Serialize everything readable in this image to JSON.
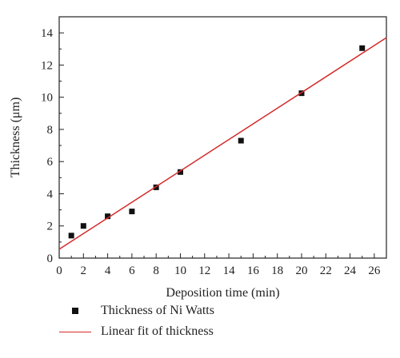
{
  "chart_data": {
    "type": "scatter",
    "xlabel": "Deposition time (min)",
    "ylabel": "Thickness (μm)",
    "xlim": [
      0,
      27
    ],
    "ylim": [
      0,
      15
    ],
    "x_ticks": [
      0,
      2,
      4,
      6,
      8,
      10,
      12,
      14,
      16,
      18,
      20,
      22,
      24,
      26
    ],
    "y_ticks": [
      0,
      2,
      4,
      6,
      8,
      10,
      12,
      14
    ],
    "series": [
      {
        "name": "Thickness of Ni Watts",
        "type": "scatter",
        "color": "#111111",
        "points": [
          {
            "x": 1,
            "y": 1.4
          },
          {
            "x": 2,
            "y": 2.0
          },
          {
            "x": 4,
            "y": 2.6
          },
          {
            "x": 6,
            "y": 2.9
          },
          {
            "x": 8,
            "y": 4.4
          },
          {
            "x": 10,
            "y": 5.35
          },
          {
            "x": 15,
            "y": 7.3
          },
          {
            "x": 20,
            "y": 10.25
          },
          {
            "x": 25,
            "y": 13.05
          }
        ]
      },
      {
        "name": "Linear fit of thickness",
        "type": "line",
        "color": "#d42a2a",
        "points": [
          {
            "x": 0,
            "y": 0.55
          },
          {
            "x": 27,
            "y": 13.7
          }
        ]
      }
    ],
    "grid": false,
    "legend_position": "bottom-left"
  }
}
